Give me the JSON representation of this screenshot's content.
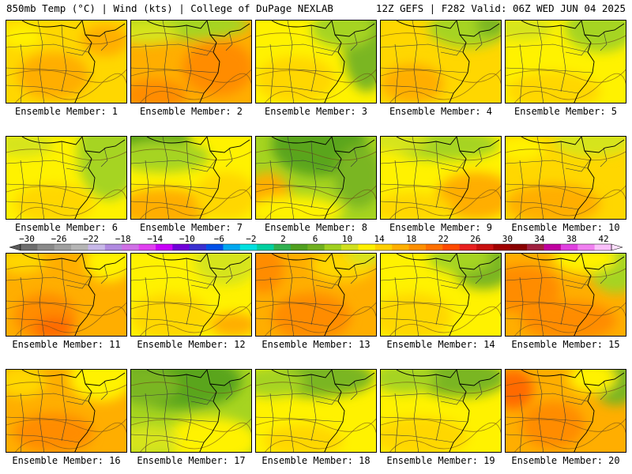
{
  "header": {
    "left": "850mb Temp (°C) | Wind (kts) | College of DuPage NEXLAB",
    "right": "12Z GEFS | F282 Valid: 06Z WED JUN 04 2025"
  },
  "colors": {
    "c6": "#5aa51a",
    "c8": "#7ab620",
    "c10": "#a6d420",
    "c12": "#d6e41a",
    "c14": "#fff200",
    "c16": "#ffd700",
    "c18": "#ffae00",
    "c20": "#ff8c00",
    "c22": "#ff6a00",
    "border": "#3a3a3a"
  },
  "colorbar": {
    "labels": [
      "−30",
      "−26",
      "−22",
      "−18",
      "−14",
      "−10",
      "−6",
      "−2",
      "2",
      "6",
      "10",
      "14",
      "18",
      "22",
      "26",
      "30",
      "34",
      "38",
      "42"
    ],
    "colors": [
      "#6e6e6e",
      "#8a8a8a",
      "#a0a0a0",
      "#b5b5b5",
      "#c8b8e8",
      "#b08ae0",
      "#d070e6",
      "#e040f0",
      "#c800f8",
      "#7000d8",
      "#3a30d0",
      "#0050e8",
      "#00a8f0",
      "#00e0e0",
      "#00d0a0",
      "#30b050",
      "#50a020",
      "#70b020",
      "#a0d020",
      "#d0e020",
      "#fff000",
      "#ffd000",
      "#ffb000",
      "#ff9000",
      "#ff7000",
      "#ff4a00",
      "#e82020",
      "#c81010",
      "#a00000",
      "#880000",
      "#a02040",
      "#c000a0",
      "#e040e0",
      "#f080f0",
      "#fac0fa"
    ]
  },
  "members": [
    {
      "label": "Ensemble Member: 1",
      "base": "c16",
      "blobs": [
        [
          "c18",
          60,
          70,
          45,
          30
        ],
        [
          "c18",
          125,
          25,
          30,
          20
        ],
        [
          "c14",
          20,
          20,
          25,
          15
        ]
      ]
    },
    {
      "label": "Ensemble Member: 2",
      "base": "c18",
      "blobs": [
        [
          "c10",
          60,
          5,
          90,
          20
        ],
        [
          "c12",
          20,
          15,
          40,
          15
        ],
        [
          "c20",
          110,
          60,
          45,
          35
        ],
        [
          "c20",
          30,
          95,
          40,
          20
        ]
      ]
    },
    {
      "label": "Ensemble Member: 3",
      "base": "c14",
      "blobs": [
        [
          "c8",
          140,
          30,
          30,
          60
        ],
        [
          "c10",
          110,
          10,
          40,
          25
        ],
        [
          "c16",
          50,
          75,
          50,
          30
        ]
      ]
    },
    {
      "label": "Ensemble Member: 4",
      "base": "c16",
      "blobs": [
        [
          "c10",
          110,
          10,
          50,
          25
        ],
        [
          "c8",
          140,
          5,
          20,
          15
        ],
        [
          "c18",
          40,
          80,
          40,
          25
        ]
      ]
    },
    {
      "label": "Ensemble Member: 5",
      "base": "c14",
      "blobs": [
        [
          "c10",
          120,
          10,
          45,
          30
        ],
        [
          "c12",
          20,
          10,
          40,
          15
        ],
        [
          "c16",
          60,
          90,
          60,
          25
        ]
      ]
    },
    {
      "label": "Ensemble Member: 6",
      "base": "c14",
      "blobs": [
        [
          "c10",
          130,
          20,
          40,
          60
        ],
        [
          "c12",
          20,
          10,
          40,
          15
        ],
        [
          "c16",
          60,
          85,
          50,
          25
        ]
      ]
    },
    {
      "label": "Ensemble Member: 7",
      "base": "c14",
      "blobs": [
        [
          "c6",
          20,
          0,
          55,
          25
        ],
        [
          "c10",
          40,
          25,
          60,
          20
        ],
        [
          "c18",
          40,
          90,
          60,
          25
        ],
        [
          "c16",
          120,
          75,
          40,
          30
        ]
      ]
    },
    {
      "label": "Ensemble Member: 8",
      "base": "c10",
      "blobs": [
        [
          "c6",
          80,
          10,
          60,
          40
        ],
        [
          "c8",
          130,
          50,
          30,
          40
        ],
        [
          "c18",
          15,
          80,
          30,
          35
        ],
        [
          "c14",
          50,
          95,
          60,
          20
        ]
      ]
    },
    {
      "label": "Ensemble Member: 9",
      "base": "c14",
      "blobs": [
        [
          "c10",
          80,
          10,
          70,
          20
        ],
        [
          "c12",
          20,
          5,
          40,
          15
        ],
        [
          "c18",
          120,
          75,
          50,
          30
        ],
        [
          "c16",
          40,
          90,
          50,
          20
        ]
      ]
    },
    {
      "label": "Ensemble Member: 10",
      "base": "c16",
      "blobs": [
        [
          "c12",
          110,
          5,
          50,
          20
        ],
        [
          "c18",
          60,
          85,
          60,
          25
        ],
        [
          "c14",
          20,
          15,
          30,
          15
        ]
      ]
    },
    {
      "label": "Ensemble Member: 11",
      "base": "c18",
      "blobs": [
        [
          "c20",
          50,
          80,
          40,
          30
        ],
        [
          "c22",
          60,
          95,
          25,
          15
        ],
        [
          "c14",
          130,
          10,
          30,
          25
        ],
        [
          "c16",
          20,
          10,
          30,
          15
        ]
      ]
    },
    {
      "label": "Ensemble Member: 12",
      "base": "c14",
      "blobs": [
        [
          "c12",
          120,
          10,
          40,
          30
        ],
        [
          "c16",
          50,
          80,
          50,
          30
        ],
        [
          "c18",
          130,
          90,
          30,
          15
        ]
      ]
    },
    {
      "label": "Ensemble Member: 13",
      "base": "c18",
      "blobs": [
        [
          "c20",
          10,
          20,
          25,
          30
        ],
        [
          "c20",
          70,
          80,
          50,
          30
        ],
        [
          "c16",
          110,
          15,
          40,
          20
        ],
        [
          "c12",
          140,
          0,
          25,
          15
        ]
      ]
    },
    {
      "label": "Ensemble Member: 14",
      "base": "c14",
      "blobs": [
        [
          "c8",
          130,
          15,
          40,
          30
        ],
        [
          "c10",
          100,
          5,
          40,
          20
        ],
        [
          "c16",
          40,
          80,
          50,
          30
        ]
      ]
    },
    {
      "label": "Ensemble Member: 15",
      "base": "c18",
      "blobs": [
        [
          "c20",
          20,
          45,
          50,
          30
        ],
        [
          "c10",
          140,
          15,
          35,
          35
        ],
        [
          "c14",
          100,
          5,
          40,
          20
        ],
        [
          "c20",
          80,
          85,
          60,
          25
        ]
      ]
    },
    {
      "label": "Ensemble Member: 16",
      "base": "c18",
      "blobs": [
        [
          "c14",
          120,
          10,
          40,
          30
        ],
        [
          "c20",
          60,
          80,
          50,
          25
        ],
        [
          "c16",
          20,
          15,
          30,
          20
        ]
      ]
    },
    {
      "label": "Ensemble Member: 17",
      "base": "c10",
      "blobs": [
        [
          "c6",
          60,
          15,
          80,
          35
        ],
        [
          "c8",
          20,
          20,
          40,
          25
        ],
        [
          "c14",
          100,
          90,
          60,
          30
        ],
        [
          "c12",
          20,
          90,
          40,
          20
        ]
      ]
    },
    {
      "label": "Ensemble Member: 18",
      "base": "c14",
      "blobs": [
        [
          "c8",
          80,
          10,
          70,
          25
        ],
        [
          "c10",
          20,
          15,
          40,
          20
        ],
        [
          "c16",
          60,
          90,
          50,
          20
        ]
      ]
    },
    {
      "label": "Ensemble Member: 19",
      "base": "c14",
      "blobs": [
        [
          "c8",
          100,
          10,
          60,
          25
        ],
        [
          "c10",
          30,
          10,
          40,
          20
        ],
        [
          "c16",
          50,
          85,
          60,
          25
        ]
      ]
    },
    {
      "label": "Ensemble Member: 20",
      "base": "c18",
      "blobs": [
        [
          "c22",
          10,
          25,
          25,
          25
        ],
        [
          "c8",
          140,
          15,
          30,
          30
        ],
        [
          "c14",
          110,
          10,
          30,
          20
        ],
        [
          "c20",
          60,
          70,
          40,
          30
        ]
      ]
    }
  ]
}
